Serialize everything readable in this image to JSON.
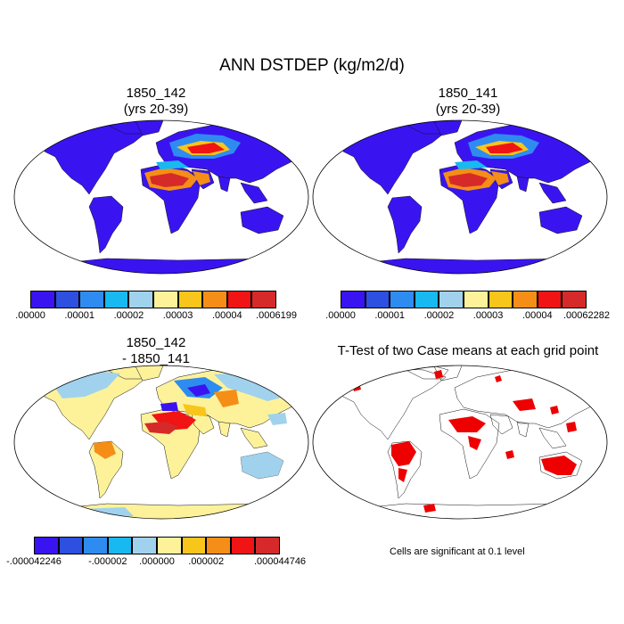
{
  "figure": {
    "title": "ANN DSTDEP (kg/m2/d)",
    "note": "Cells are significant at 0.1 level"
  },
  "panels": [
    {
      "id": "case1",
      "title_line1": "1850_142",
      "title_line2": "(yrs 20-39)",
      "colorbar": {
        "colors": [
          "#3a14f0",
          "#2d50e0",
          "#2e8cf0",
          "#18b8f0",
          "#a0d2ee",
          "#fdf29a",
          "#f8c51a",
          "#f58e16",
          "#f01414",
          "#d62a2a"
        ],
        "labels": [
          ".00000",
          ".00001",
          ".00002",
          ".00003",
          ".00004",
          ".0006199"
        ]
      }
    },
    {
      "id": "case2",
      "title_line1": "1850_141",
      "title_line2": "(yrs 20-39)",
      "colorbar": {
        "colors": [
          "#3a14f0",
          "#2d50e0",
          "#2e8cf0",
          "#18b8f0",
          "#a0d2ee",
          "#fdf29a",
          "#f8c51a",
          "#f58e16",
          "#f01414",
          "#d62a2a"
        ],
        "labels": [
          ".00000",
          ".00001",
          ".00002",
          ".00003",
          ".00004",
          ".00062282"
        ]
      }
    },
    {
      "id": "diff",
      "title_line1": "1850_142",
      "title_line2": "- 1850_141",
      "colorbar": {
        "colors": [
          "#3a14f0",
          "#2d50e0",
          "#2e8cf0",
          "#18b8f0",
          "#a0d2ee",
          "#fdf29a",
          "#f8c51a",
          "#f58e16",
          "#f01414",
          "#d62a2a"
        ],
        "labels": [
          "-.000042246",
          "-.000002",
          ".000000",
          ".000002",
          ".000044746"
        ]
      }
    },
    {
      "id": "ttest",
      "title_line1": "T-Test of two Case means at each grid point",
      "title_line2": ""
    }
  ],
  "colors": {
    "ocean": "#ffffff",
    "significant": "#ee0000",
    "coast": "#000000"
  }
}
